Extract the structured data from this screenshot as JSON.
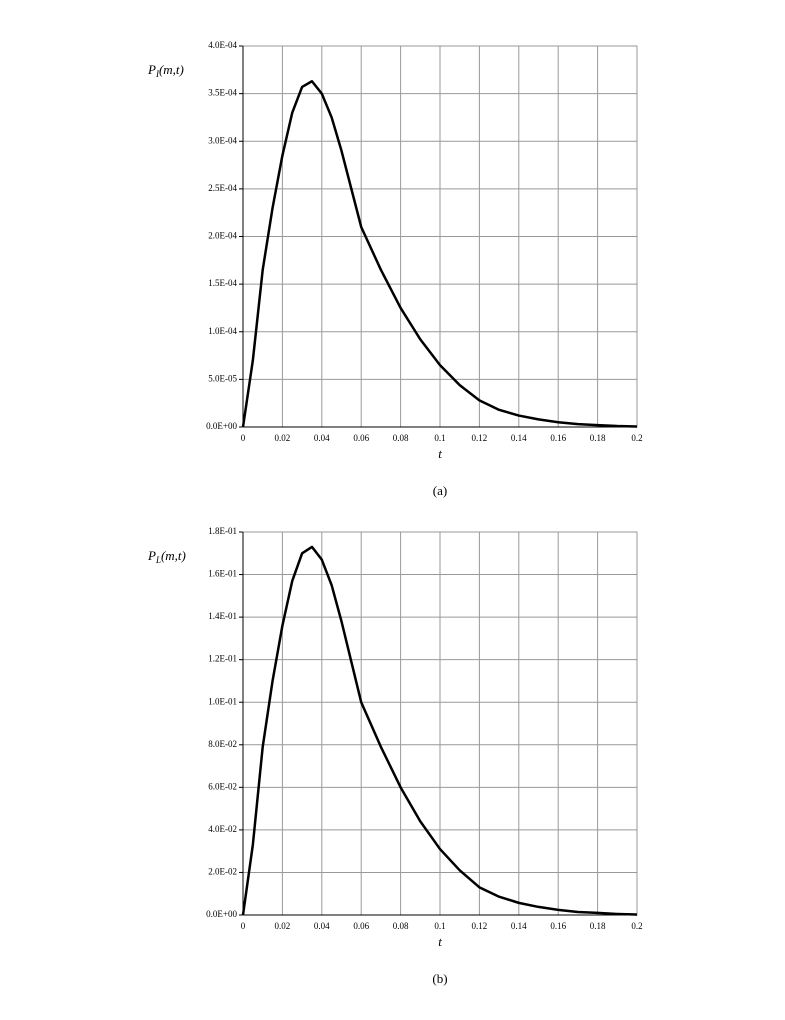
{
  "chart_data": [
    {
      "type": "line",
      "caption": "(a)",
      "xlabel": "t",
      "ylabel_parts": [
        "P",
        "I",
        "(m,t)"
      ],
      "x": [
        0,
        0.005,
        0.01,
        0.015,
        0.02,
        0.025,
        0.03,
        0.035,
        0.04,
        0.045,
        0.05,
        0.055,
        0.06,
        0.07,
        0.08,
        0.09,
        0.1,
        0.11,
        0.12,
        0.13,
        0.14,
        0.15,
        0.16,
        0.17,
        0.18,
        0.19,
        0.2
      ],
      "series": [
        {
          "color": "#000000",
          "values": [
            0,
            7e-05,
            0.000165,
            0.00023,
            0.000285,
            0.00033,
            0.000357,
            0.000363,
            0.00035,
            0.000325,
            0.00029,
            0.00025,
            0.00021,
            0.000165,
            0.000125,
            9.2e-05,
            6.5e-05,
            4.4e-05,
            2.8e-05,
            1.8e-05,
            1.2e-05,
            8e-06,
            5e-06,
            3e-06,
            2e-06,
            1e-06,
            5e-07
          ]
        }
      ],
      "xlim": [
        0,
        0.2
      ],
      "xticks": [
        0,
        0.02,
        0.04,
        0.06,
        0.08,
        0.1,
        0.12,
        0.14,
        0.16,
        0.18,
        0.2
      ],
      "ylim": [
        0,
        0.0004
      ],
      "yticks": [
        {
          "value": 0,
          "label": "0.0E+00"
        },
        {
          "value": 5e-05,
          "label": "5.0E-05"
        },
        {
          "value": 0.0001,
          "label": "1.0E-04"
        },
        {
          "value": 0.00015,
          "label": "1.5E-04"
        },
        {
          "value": 0.0002,
          "label": "2.0E-04"
        },
        {
          "value": 0.00025,
          "label": "2.5E-04"
        },
        {
          "value": 0.0003,
          "label": "3.0E-04"
        },
        {
          "value": 0.00035,
          "label": "3.5E-04"
        },
        {
          "value": 0.0004,
          "label": "4.0E-04"
        }
      ],
      "grid": true
    },
    {
      "type": "line",
      "caption": "(b)",
      "xlabel": "t",
      "ylabel_parts": [
        "P",
        "L",
        "(m,t)"
      ],
      "x": [
        0,
        0.005,
        0.01,
        0.015,
        0.02,
        0.025,
        0.03,
        0.035,
        0.04,
        0.045,
        0.05,
        0.055,
        0.06,
        0.07,
        0.08,
        0.09,
        0.1,
        0.11,
        0.12,
        0.13,
        0.14,
        0.15,
        0.16,
        0.17,
        0.18,
        0.19,
        0.2
      ],
      "series": [
        {
          "color": "#000000",
          "values": [
            0,
            0.033,
            0.079,
            0.11,
            0.136,
            0.157,
            0.17,
            0.173,
            0.167,
            0.155,
            0.138,
            0.119,
            0.1,
            0.079,
            0.06,
            0.044,
            0.031,
            0.021,
            0.013,
            0.0086,
            0.0057,
            0.0038,
            0.0024,
            0.0014,
            0.001,
            0.0005,
            0.0002
          ]
        }
      ],
      "xlim": [
        0,
        0.2
      ],
      "xticks": [
        0,
        0.02,
        0.04,
        0.06,
        0.08,
        0.1,
        0.12,
        0.14,
        0.16,
        0.18,
        0.2
      ],
      "ylim": [
        0,
        0.18
      ],
      "yticks": [
        {
          "value": 0,
          "label": "0.0E+00"
        },
        {
          "value": 0.02,
          "label": "2.0E-02"
        },
        {
          "value": 0.04,
          "label": "4.0E-02"
        },
        {
          "value": 0.06,
          "label": "6.0E-02"
        },
        {
          "value": 0.08,
          "label": "8.0E-02"
        },
        {
          "value": 0.1,
          "label": "1.0E-01"
        },
        {
          "value": 0.12,
          "label": "1.2E-01"
        },
        {
          "value": 0.14,
          "label": "1.4E-01"
        },
        {
          "value": 0.16,
          "label": "1.6E-01"
        },
        {
          "value": 0.18,
          "label": "1.8E-01"
        }
      ],
      "grid": true
    }
  ]
}
